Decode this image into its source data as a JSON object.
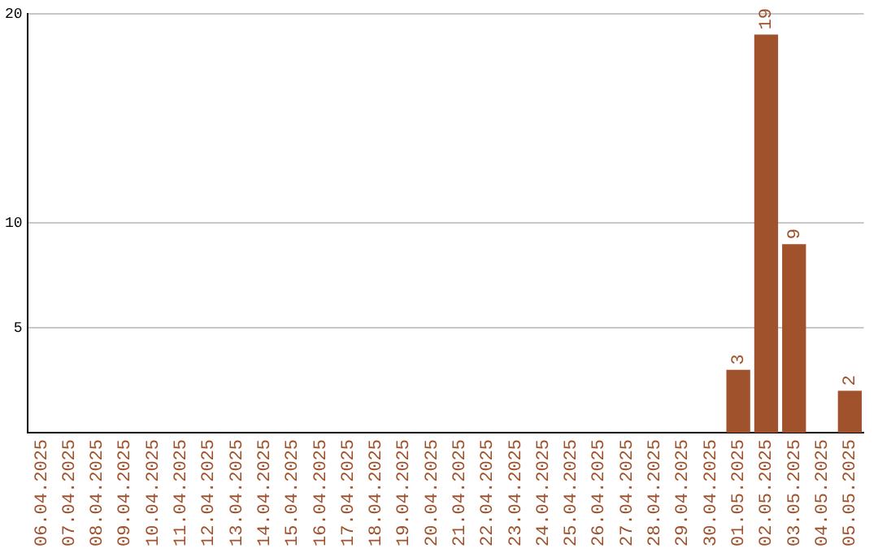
{
  "chart_data": {
    "type": "bar",
    "categories": [
      "06.04.2025",
      "07.04.2025",
      "08.04.2025",
      "09.04.2025",
      "10.04.2025",
      "11.04.2025",
      "12.04.2025",
      "13.04.2025",
      "14.04.2025",
      "15.04.2025",
      "16.04.2025",
      "17.04.2025",
      "18.04.2025",
      "19.04.2025",
      "20.04.2025",
      "21.04.2025",
      "22.04.2025",
      "23.04.2025",
      "24.04.2025",
      "25.04.2025",
      "26.04.2025",
      "27.04.2025",
      "28.04.2025",
      "29.04.2025",
      "30.04.2025",
      "01.05.2025",
      "02.05.2025",
      "03.05.2025",
      "04.05.2025",
      "05.05.2025"
    ],
    "values": [
      0,
      0,
      0,
      0,
      0,
      0,
      0,
      0,
      0,
      0,
      0,
      0,
      0,
      0,
      0,
      0,
      0,
      0,
      0,
      0,
      0,
      0,
      0,
      0,
      0,
      3,
      19,
      9,
      0,
      2
    ],
    "value_labels": [
      null,
      null,
      null,
      null,
      null,
      null,
      null,
      null,
      null,
      null,
      null,
      null,
      null,
      null,
      null,
      null,
      null,
      null,
      null,
      null,
      null,
      null,
      null,
      null,
      null,
      "3",
      "19",
      "9",
      null,
      "2"
    ],
    "color": "#a0522d",
    "ylim": [
      0,
      20
    ],
    "yticks": [
      5,
      10,
      20
    ],
    "grid": "y",
    "legend": false
  }
}
